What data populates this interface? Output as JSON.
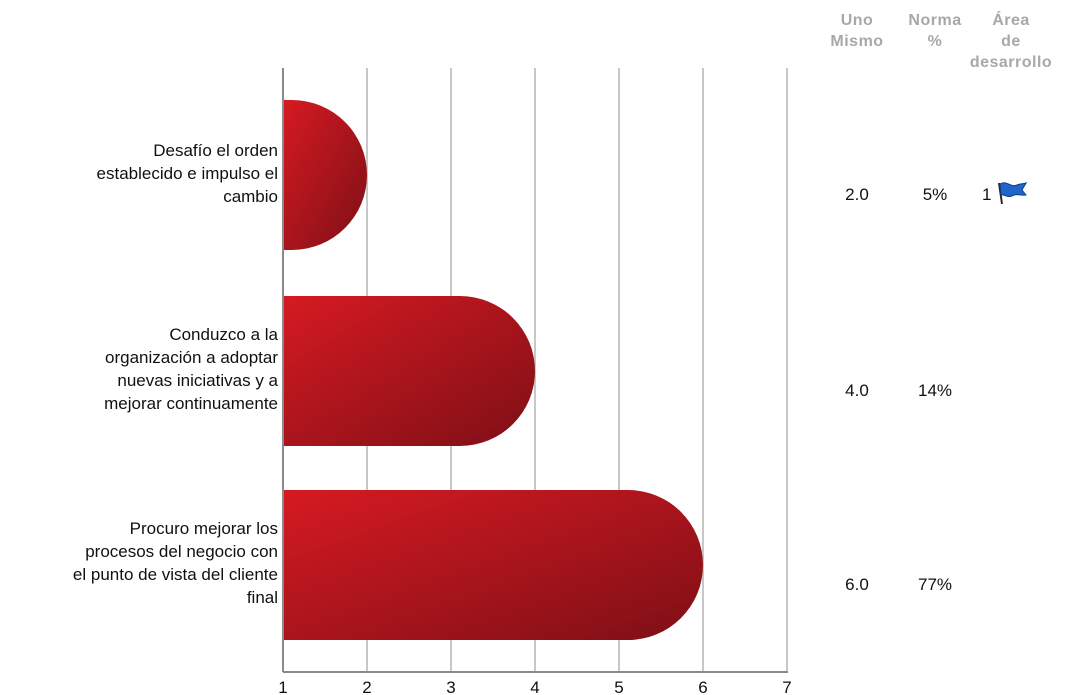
{
  "columns": {
    "self": "Uno\nMismo",
    "norm": "Norma\n%",
    "dev": "Área\nde\ndesarrollo"
  },
  "chart_data": {
    "type": "bar",
    "orientation": "horizontal",
    "categories": [
      "Desafío el orden establecido e impulso el cambio",
      "Conduzco a la organización a adoptar nuevas iniciativas y a mejorar continuamente",
      "Procuro mejorar los procesos del negocio con el punto de vista del cliente final"
    ],
    "values": [
      2,
      4,
      6
    ],
    "xlim": [
      1,
      7
    ],
    "xticks": [
      "1",
      "2",
      "3",
      "4",
      "5",
      "6",
      "7"
    ],
    "grid": true,
    "bar_color": "#b81620"
  },
  "rows": [
    {
      "label_lines": [
        "Desafío el orden",
        "establecido e impulso el",
        "cambio"
      ],
      "self": "2.0",
      "norm": "5%",
      "dev": "1",
      "dev_icon": "blue-flag-icon"
    },
    {
      "label_lines": [
        "Conduzco a la",
        "organización a adoptar",
        "nuevas iniciativas y a",
        "mejorar continuamente"
      ],
      "self": "4.0",
      "norm": "14%",
      "dev": "",
      "dev_icon": ""
    },
    {
      "label_lines": [
        "Procuro mejorar los",
        "procesos del negocio con",
        "el punto de vista del cliente",
        "final"
      ],
      "self": "6.0",
      "norm": "77%",
      "dev": "",
      "dev_icon": ""
    }
  ]
}
